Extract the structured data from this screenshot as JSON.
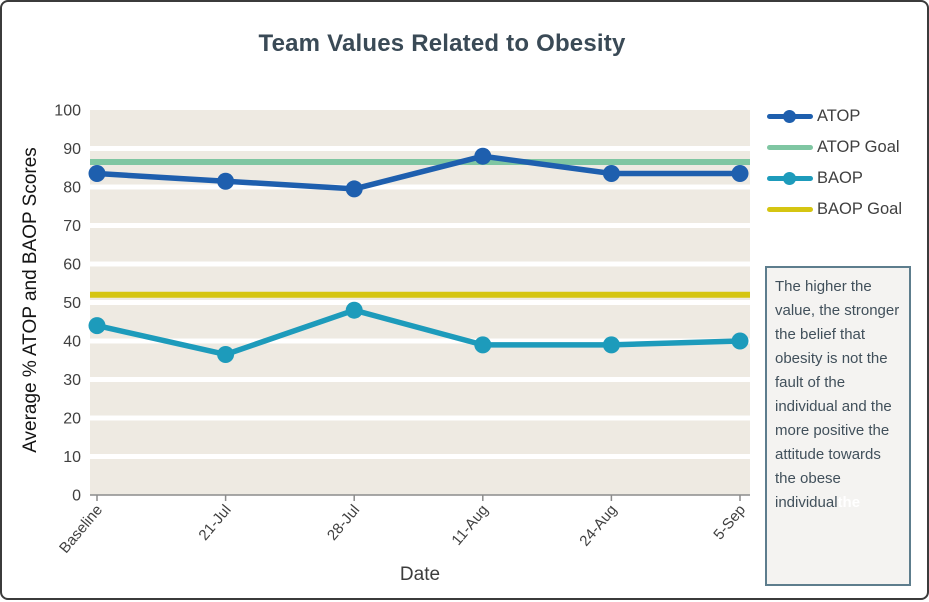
{
  "title": "Team Values Related to Obesity",
  "chart_data": {
    "type": "line",
    "categories": [
      "Baseline",
      "21-Jul",
      "28-Jul",
      "11-Aug",
      "24-Aug",
      "5-Sep"
    ],
    "series": [
      {
        "name": "ATOP",
        "values": [
          83.5,
          81.5,
          79.5,
          88,
          83.5,
          83.5
        ],
        "color": "#1e5fae",
        "marker": true
      },
      {
        "name": "ATOP Goal",
        "values": [
          86.5,
          86.5,
          86.5,
          86.5,
          86.5,
          86.5
        ],
        "color": "#7fc6a2",
        "marker": false
      },
      {
        "name": "BAOP",
        "values": [
          44,
          36.5,
          48,
          39,
          39,
          40
        ],
        "color": "#1d9bbb",
        "marker": true
      },
      {
        "name": "BAOP Goal",
        "values": [
          52,
          52,
          52,
          52,
          52,
          52
        ],
        "color": "#d5c511",
        "marker": false
      }
    ],
    "xlabel": "Date",
    "ylabel": "Average % ATOP and BAOP Scores",
    "ylim": [
      0,
      100
    ],
    "yticks": [
      0,
      10,
      20,
      30,
      40,
      50,
      60,
      70,
      80,
      90,
      100
    ],
    "grid": true,
    "legend_position": "right",
    "plot_bg": "#eeeae2",
    "grid_color": "#ffffff",
    "axis_color": "#8c8c8c",
    "tick_label_color": "#404040"
  },
  "note_box": {
    "text": "The higher the value, the stronger the belief that obesity is not the fault of the individual and the more positive the attitude towards the obese individual",
    "ghost_text": "the"
  }
}
